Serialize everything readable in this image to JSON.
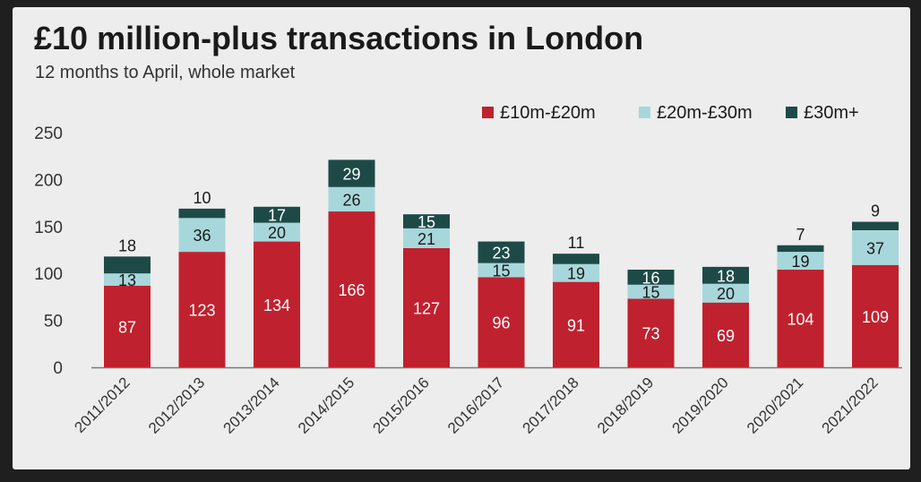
{
  "chart_data": {
    "type": "bar",
    "stacked": true,
    "title": "£10 million-plus transactions in London",
    "subtitle": "12 months to April, whole market",
    "xlabel": "",
    "ylabel": "",
    "ylim": [
      0,
      250
    ],
    "yticks": [
      "0",
      "50",
      "100",
      "150",
      "200",
      "250"
    ],
    "ytick_values": [
      0,
      50,
      100,
      150,
      200,
      250
    ],
    "grid": false,
    "legend_position": "top-right",
    "categories": [
      "2011/2012",
      "2012/2013",
      "2013/2014",
      "2014/2015",
      "2015/2016",
      "2016/2017",
      "2017/2018",
      "2018/2019",
      "2019/2020",
      "2020/2021",
      "2021/2022"
    ],
    "series": [
      {
        "name": "£10m-£20m",
        "color": "#c0212e",
        "values": [
          87,
          123,
          134,
          166,
          127,
          96,
          91,
          73,
          69,
          104,
          109
        ]
      },
      {
        "name": "£20m-£30m",
        "color": "#a7d7db",
        "values": [
          13,
          36,
          20,
          26,
          21,
          15,
          19,
          15,
          20,
          19,
          37
        ]
      },
      {
        "name": "£30m+",
        "color": "#1d4a47",
        "values": [
          18,
          10,
          17,
          29,
          15,
          23,
          11,
          16,
          18,
          7,
          9
        ]
      }
    ],
    "data_labels": {
      "outside_top": [
        true,
        true,
        false,
        false,
        false,
        false,
        true,
        false,
        false,
        true,
        true
      ]
    }
  }
}
